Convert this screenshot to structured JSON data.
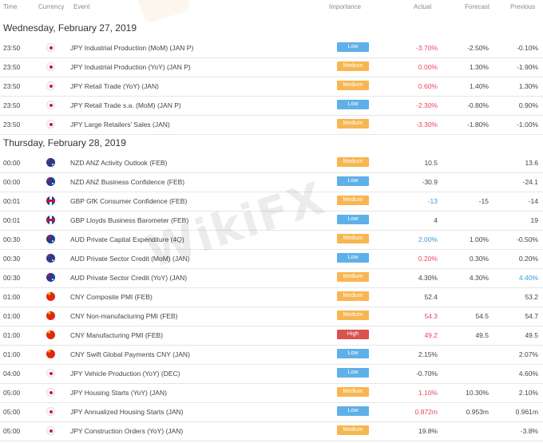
{
  "header": {
    "time": "Time",
    "currency": "Currency",
    "event": "Event",
    "importance": "Importance",
    "actual": "Actual",
    "forecast": "Forecast",
    "previous": "Previous"
  },
  "watermark": "WikiFX",
  "colors": {
    "low": "#5fb0e8",
    "medium": "#f7b650",
    "high": "#d9534f",
    "actual_red": "#e8475f",
    "actual_blue": "#3a9bd9"
  },
  "days": [
    {
      "date": "Wednesday, February 27, 2019",
      "rows": [
        {
          "time": "23:50",
          "flag": "jp",
          "event": "JPY Industrial Production (MoM) (JAN P)",
          "importance": "Low",
          "actual": "-3.70%",
          "actual_color": "red",
          "forecast": "-2.50%",
          "previous": "-0.10%",
          "previous_color": ""
        },
        {
          "time": "23:50",
          "flag": "jp",
          "event": "JPY Industrial Production (YoY) (JAN P)",
          "importance": "Medium",
          "actual": "0.00%",
          "actual_color": "red",
          "forecast": "1.30%",
          "previous": "-1.90%",
          "previous_color": ""
        },
        {
          "time": "23:50",
          "flag": "jp",
          "event": "JPY Retail Trade (YoY) (JAN)",
          "importance": "Medium",
          "actual": "0.60%",
          "actual_color": "red",
          "forecast": "1.40%",
          "previous": "1.30%",
          "previous_color": ""
        },
        {
          "time": "23:50",
          "flag": "jp",
          "event": "JPY Retail Trade s.a. (MoM) (JAN P)",
          "importance": "Low",
          "actual": "-2.30%",
          "actual_color": "red",
          "forecast": "-0.80%",
          "previous": "0.90%",
          "previous_color": ""
        },
        {
          "time": "23:50",
          "flag": "jp",
          "event": "JPY Large Retailers' Sales (JAN)",
          "importance": "Medium",
          "actual": "-3.30%",
          "actual_color": "red",
          "forecast": "-1.80%",
          "previous": "-1.00%",
          "previous_color": ""
        }
      ]
    },
    {
      "date": "Thursday, February 28, 2019",
      "rows": [
        {
          "time": "00:00",
          "flag": "nz",
          "event": "NZD ANZ Activity Outlook (FEB)",
          "importance": "Medium",
          "actual": "10.5",
          "actual_color": "",
          "forecast": "",
          "previous": "13.6",
          "previous_color": ""
        },
        {
          "time": "00:00",
          "flag": "nz",
          "event": "NZD ANZ Business Confidence (FEB)",
          "importance": "Low",
          "actual": "-30.9",
          "actual_color": "",
          "forecast": "",
          "previous": "-24.1",
          "previous_color": ""
        },
        {
          "time": "00:01",
          "flag": "gb",
          "event": "GBP GfK Consumer Confidence (FEB)",
          "importance": "Medium",
          "actual": "-13",
          "actual_color": "blue",
          "forecast": "-15",
          "previous": "-14",
          "previous_color": ""
        },
        {
          "time": "00:01",
          "flag": "gb",
          "event": "GBP Lloyds Business Barometer (FEB)",
          "importance": "Low",
          "actual": "4",
          "actual_color": "",
          "forecast": "",
          "previous": "19",
          "previous_color": ""
        },
        {
          "time": "00:30",
          "flag": "au",
          "event": "AUD Private Capital Expenditure (4Q)",
          "importance": "Medium",
          "actual": "2.00%",
          "actual_color": "blue",
          "forecast": "1.00%",
          "previous": "-0.50%",
          "previous_color": ""
        },
        {
          "time": "00:30",
          "flag": "au",
          "event": "AUD Private Sector Credit (MoM) (JAN)",
          "importance": "Low",
          "actual": "0.20%",
          "actual_color": "red",
          "forecast": "0.30%",
          "previous": "0.20%",
          "previous_color": ""
        },
        {
          "time": "00:30",
          "flag": "au",
          "event": "AUD Private Sector Credit (YoY) (JAN)",
          "importance": "Medium",
          "actual": "4.30%",
          "actual_color": "",
          "forecast": "4.30%",
          "previous": "4.40%",
          "previous_color": "blue"
        },
        {
          "time": "01:00",
          "flag": "cn",
          "event": "CNY Composite PMI (FEB)",
          "importance": "Medium",
          "actual": "52.4",
          "actual_color": "",
          "forecast": "",
          "previous": "53.2",
          "previous_color": ""
        },
        {
          "time": "01:00",
          "flag": "cn",
          "event": "CNY Non-manufacturing PMI (FEB)",
          "importance": "Medium",
          "actual": "54.3",
          "actual_color": "red",
          "forecast": "54.5",
          "previous": "54.7",
          "previous_color": ""
        },
        {
          "time": "01:00",
          "flag": "cn",
          "event": "CNY Manufacturing PMI (FEB)",
          "importance": "High",
          "actual": "49.2",
          "actual_color": "red",
          "forecast": "49.5",
          "previous": "49.5",
          "previous_color": ""
        },
        {
          "time": "01:00",
          "flag": "cn",
          "event": "CNY Swift Global Payments CNY (JAN)",
          "importance": "Low",
          "actual": "2.15%",
          "actual_color": "",
          "forecast": "",
          "previous": "2.07%",
          "previous_color": ""
        },
        {
          "time": "04:00",
          "flag": "jp",
          "event": "JPY Vehicle Production (YoY) (DEC)",
          "importance": "Low",
          "actual": "-0.70%",
          "actual_color": "",
          "forecast": "",
          "previous": "4.60%",
          "previous_color": ""
        },
        {
          "time": "05:00",
          "flag": "jp",
          "event": "JPY Housing Starts (YoY) (JAN)",
          "importance": "Medium",
          "actual": "1.10%",
          "actual_color": "red",
          "forecast": "10.30%",
          "previous": "2.10%",
          "previous_color": ""
        },
        {
          "time": "05:00",
          "flag": "jp",
          "event": "JPY Annualized Housing Starts (JAN)",
          "importance": "Low",
          "actual": "0.872m",
          "actual_color": "red",
          "forecast": "0.953m",
          "previous": "0.961m",
          "previous_color": ""
        },
        {
          "time": "05:00",
          "flag": "jp",
          "event": "JPY Construction Orders (YoY) (JAN)",
          "importance": "Medium",
          "actual": "19.8%",
          "actual_color": "",
          "forecast": "",
          "previous": "-3.8%",
          "previous_color": ""
        }
      ]
    }
  ]
}
